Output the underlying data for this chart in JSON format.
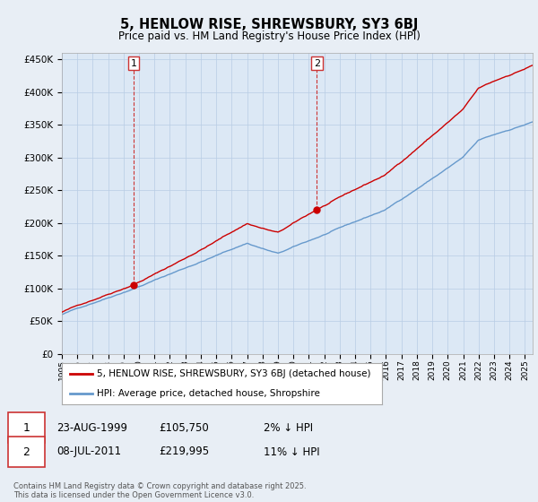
{
  "title": "5, HENLOW RISE, SHREWSBURY, SY3 6BJ",
  "subtitle": "Price paid vs. HM Land Registry's House Price Index (HPI)",
  "ylim": [
    0,
    460000
  ],
  "yticks": [
    0,
    50000,
    100000,
    150000,
    200000,
    250000,
    300000,
    350000,
    400000,
    450000
  ],
  "legend_label_red": "5, HENLOW RISE, SHREWSBURY, SY3 6BJ (detached house)",
  "legend_label_blue": "HPI: Average price, detached house, Shropshire",
  "annotation1_date": "23-AUG-1999",
  "annotation1_price": "£105,750",
  "annotation1_hpi": "2% ↓ HPI",
  "annotation2_date": "08-JUL-2011",
  "annotation2_price": "£219,995",
  "annotation2_hpi": "11% ↓ HPI",
  "copyright": "Contains HM Land Registry data © Crown copyright and database right 2025.\nThis data is licensed under the Open Government Licence v3.0.",
  "background_color": "#e8eef5",
  "plot_bg_color": "#dce8f5",
  "red_color": "#cc0000",
  "blue_color": "#6699cc",
  "grid_color": "#b8cce4",
  "sale1_year": 1999.65,
  "sale1_price": 105750,
  "sale2_year": 2011.52,
  "sale2_price": 219995,
  "xmin": 1995,
  "xmax": 2025.5
}
